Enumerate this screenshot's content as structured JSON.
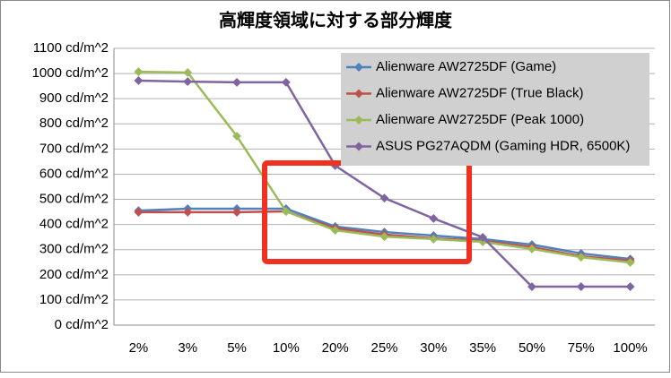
{
  "chart_data": {
    "type": "line",
    "title": "高輝度領域に対する部分輝度",
    "categories": [
      "2%",
      "3%",
      "5%",
      "10%",
      "20%",
      "25%",
      "30%",
      "35%",
      "50%",
      "75%",
      "100%"
    ],
    "series": [
      {
        "name": "Alienware AW2725DF (Game)",
        "color": "#4f81bd",
        "values": [
          455,
          463,
          463,
          463,
          392,
          370,
          356,
          342,
          320,
          285,
          263
        ]
      },
      {
        "name": "Alienware AW2725DF (True Black)",
        "color": "#c0504d",
        "values": [
          449,
          449,
          449,
          452,
          385,
          360,
          345,
          335,
          310,
          274,
          256
        ]
      },
      {
        "name": "Alienware AW2725DF (Peak 1000)",
        "color": "#9bbb59",
        "values": [
          1007,
          1004,
          751,
          452,
          377,
          352,
          342,
          331,
          303,
          270,
          249
        ]
      },
      {
        "name": "ASUS PG27AQDM (Gaming HDR, 6500K)",
        "color": "#8064a2",
        "values": [
          972,
          968,
          965,
          965,
          634,
          505,
          424,
          349,
          153,
          153,
          153
        ]
      }
    ],
    "ylim": [
      0,
      1100
    ],
    "yticks": [
      {
        "value": 0,
        "label": "0 cd/m^2"
      },
      {
        "value": 100,
        "label": "100 cd/m^2"
      },
      {
        "value": 200,
        "label": "200 cd/m^2"
      },
      {
        "value": 300,
        "label": "300 cd/m^2"
      },
      {
        "value": 400,
        "label": "400 cd/m^2"
      },
      {
        "value": 500,
        "label": "500 cd/m^2"
      },
      {
        "value": 600,
        "label": "600 cd/m^2"
      },
      {
        "value": 700,
        "label": "700 cd/m^2"
      },
      {
        "value": 800,
        "label": "800 cd/m^2"
      },
      {
        "value": 900,
        "label": "900 cd/m^2"
      },
      {
        "value": 1000,
        "label": "1000 cd/m^2"
      },
      {
        "value": 1100,
        "label": "1100 cd/m^2"
      }
    ],
    "grid": true
  }
}
